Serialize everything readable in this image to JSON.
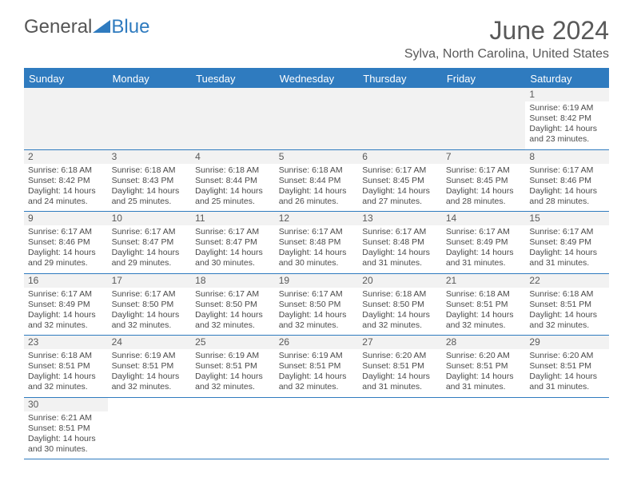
{
  "brand": {
    "part1": "General",
    "part2": "Blue"
  },
  "title": "June 2024",
  "location": "Sylva, North Carolina, United States",
  "colors": {
    "accent": "#2f7bbf",
    "headerText": "#ffffff",
    "bodyText": "#4a4a4a",
    "muted": "#595959",
    "emptyBg": "#f2f2f2",
    "pageBg": "#ffffff"
  },
  "dayNames": [
    "Sunday",
    "Monday",
    "Tuesday",
    "Wednesday",
    "Thursday",
    "Friday",
    "Saturday"
  ],
  "labels": {
    "sunrise": "Sunrise:",
    "sunset": "Sunset:",
    "daylightPrefix": "Daylight:",
    "hours": "hours",
    "and": "and",
    "minutes": "minutes."
  },
  "weeks": [
    [
      null,
      null,
      null,
      null,
      null,
      null,
      {
        "d": "1",
        "sr": "6:19 AM",
        "ss": "8:42 PM",
        "dh": "14",
        "dm": "23"
      }
    ],
    [
      {
        "d": "2",
        "sr": "6:18 AM",
        "ss": "8:42 PM",
        "dh": "14",
        "dm": "24"
      },
      {
        "d": "3",
        "sr": "6:18 AM",
        "ss": "8:43 PM",
        "dh": "14",
        "dm": "25"
      },
      {
        "d": "4",
        "sr": "6:18 AM",
        "ss": "8:44 PM",
        "dh": "14",
        "dm": "25"
      },
      {
        "d": "5",
        "sr": "6:18 AM",
        "ss": "8:44 PM",
        "dh": "14",
        "dm": "26"
      },
      {
        "d": "6",
        "sr": "6:17 AM",
        "ss": "8:45 PM",
        "dh": "14",
        "dm": "27"
      },
      {
        "d": "7",
        "sr": "6:17 AM",
        "ss": "8:45 PM",
        "dh": "14",
        "dm": "28"
      },
      {
        "d": "8",
        "sr": "6:17 AM",
        "ss": "8:46 PM",
        "dh": "14",
        "dm": "28"
      }
    ],
    [
      {
        "d": "9",
        "sr": "6:17 AM",
        "ss": "8:46 PM",
        "dh": "14",
        "dm": "29"
      },
      {
        "d": "10",
        "sr": "6:17 AM",
        "ss": "8:47 PM",
        "dh": "14",
        "dm": "29"
      },
      {
        "d": "11",
        "sr": "6:17 AM",
        "ss": "8:47 PM",
        "dh": "14",
        "dm": "30"
      },
      {
        "d": "12",
        "sr": "6:17 AM",
        "ss": "8:48 PM",
        "dh": "14",
        "dm": "30"
      },
      {
        "d": "13",
        "sr": "6:17 AM",
        "ss": "8:48 PM",
        "dh": "14",
        "dm": "31"
      },
      {
        "d": "14",
        "sr": "6:17 AM",
        "ss": "8:49 PM",
        "dh": "14",
        "dm": "31"
      },
      {
        "d": "15",
        "sr": "6:17 AM",
        "ss": "8:49 PM",
        "dh": "14",
        "dm": "31"
      }
    ],
    [
      {
        "d": "16",
        "sr": "6:17 AM",
        "ss": "8:49 PM",
        "dh": "14",
        "dm": "32"
      },
      {
        "d": "17",
        "sr": "6:17 AM",
        "ss": "8:50 PM",
        "dh": "14",
        "dm": "32"
      },
      {
        "d": "18",
        "sr": "6:17 AM",
        "ss": "8:50 PM",
        "dh": "14",
        "dm": "32"
      },
      {
        "d": "19",
        "sr": "6:17 AM",
        "ss": "8:50 PM",
        "dh": "14",
        "dm": "32"
      },
      {
        "d": "20",
        "sr": "6:18 AM",
        "ss": "8:50 PM",
        "dh": "14",
        "dm": "32"
      },
      {
        "d": "21",
        "sr": "6:18 AM",
        "ss": "8:51 PM",
        "dh": "14",
        "dm": "32"
      },
      {
        "d": "22",
        "sr": "6:18 AM",
        "ss": "8:51 PM",
        "dh": "14",
        "dm": "32"
      }
    ],
    [
      {
        "d": "23",
        "sr": "6:18 AM",
        "ss": "8:51 PM",
        "dh": "14",
        "dm": "32"
      },
      {
        "d": "24",
        "sr": "6:19 AM",
        "ss": "8:51 PM",
        "dh": "14",
        "dm": "32"
      },
      {
        "d": "25",
        "sr": "6:19 AM",
        "ss": "8:51 PM",
        "dh": "14",
        "dm": "32"
      },
      {
        "d": "26",
        "sr": "6:19 AM",
        "ss": "8:51 PM",
        "dh": "14",
        "dm": "32"
      },
      {
        "d": "27",
        "sr": "6:20 AM",
        "ss": "8:51 PM",
        "dh": "14",
        "dm": "31"
      },
      {
        "d": "28",
        "sr": "6:20 AM",
        "ss": "8:51 PM",
        "dh": "14",
        "dm": "31"
      },
      {
        "d": "29",
        "sr": "6:20 AM",
        "ss": "8:51 PM",
        "dh": "14",
        "dm": "31"
      }
    ],
    [
      {
        "d": "30",
        "sr": "6:21 AM",
        "ss": "8:51 PM",
        "dh": "14",
        "dm": "30"
      },
      null,
      null,
      null,
      null,
      null,
      null
    ]
  ]
}
